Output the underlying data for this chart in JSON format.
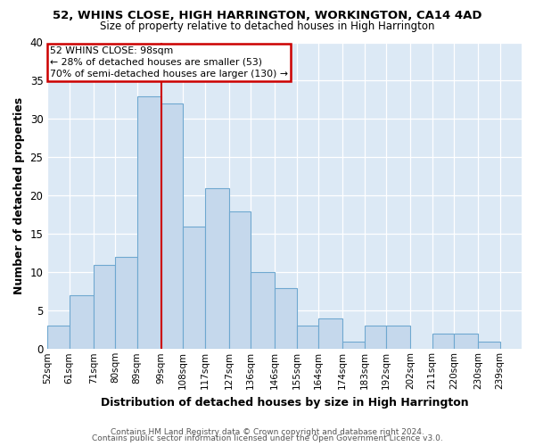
{
  "title1": "52, WHINS CLOSE, HIGH HARRINGTON, WORKINGTON, CA14 4AD",
  "title2": "Size of property relative to detached houses in High Harrington",
  "xlabel": "Distribution of detached houses by size in High Harrington",
  "ylabel": "Number of detached properties",
  "bin_labels": [
    "52sqm",
    "61sqm",
    "71sqm",
    "80sqm",
    "89sqm",
    "99sqm",
    "108sqm",
    "117sqm",
    "127sqm",
    "136sqm",
    "146sqm",
    "155sqm",
    "164sqm",
    "174sqm",
    "183sqm",
    "192sqm",
    "202sqm",
    "211sqm",
    "220sqm",
    "230sqm",
    "239sqm"
  ],
  "bar_values": [
    3,
    7,
    11,
    12,
    33,
    32,
    16,
    21,
    18,
    10,
    8,
    3,
    4,
    1,
    3,
    3,
    0,
    2,
    2,
    1,
    0
  ],
  "bar_color": "#c5d8ec",
  "bar_edge_color": "#6fa8d0",
  "bin_edges": [
    52,
    61,
    71,
    80,
    89,
    99,
    108,
    117,
    127,
    136,
    146,
    155,
    164,
    174,
    183,
    192,
    202,
    211,
    220,
    230,
    239,
    248
  ],
  "ylim": [
    0,
    40
  ],
  "yticks": [
    0,
    5,
    10,
    15,
    20,
    25,
    30,
    35,
    40
  ],
  "ref_line_x": 99,
  "annotation_text": "52 WHINS CLOSE: 98sqm\n← 28% of detached houses are smaller (53)\n70% of semi-detached houses are larger (130) →",
  "annotation_box_facecolor": "#ffffff",
  "annotation_box_edgecolor": "#cc0000",
  "ref_line_color": "#cc0000",
  "fig_bg_color": "#ffffff",
  "plot_bg_color": "#dce9f5",
  "grid_color": "#ffffff",
  "footer1": "Contains HM Land Registry data © Crown copyright and database right 2024.",
  "footer2": "Contains public sector information licensed under the Open Government Licence v3.0."
}
